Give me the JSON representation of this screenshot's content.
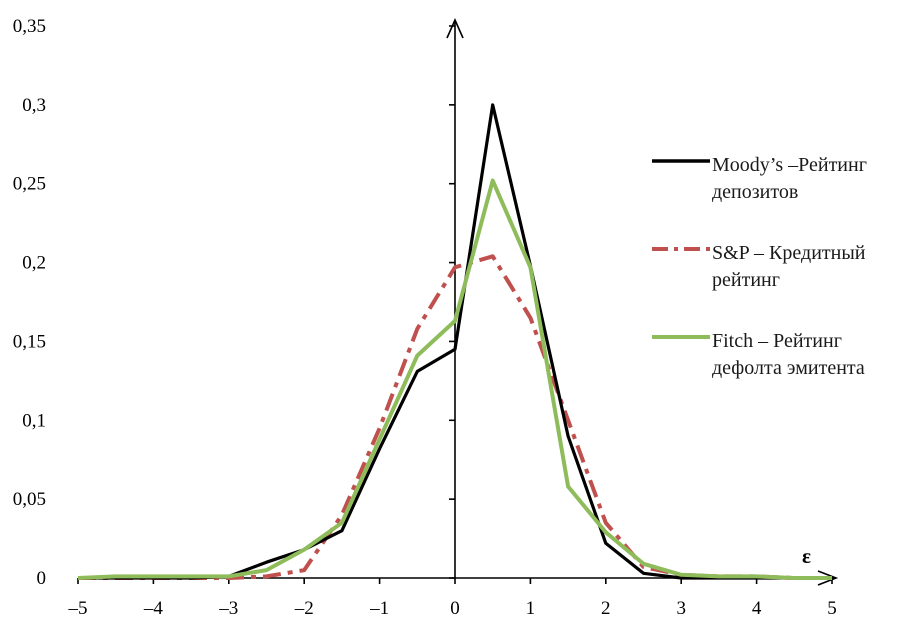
{
  "chart_data": {
    "type": "line",
    "title": "",
    "xlabel": "ε",
    "ylabel": "",
    "xlim": [
      -5,
      5
    ],
    "ylim": [
      0,
      0.35
    ],
    "x_ticks": [
      "–5",
      "–4",
      "–3",
      "–2",
      "–1",
      "0",
      "1",
      "2",
      "3",
      "4",
      "5"
    ],
    "y_ticks": [
      "0",
      "0,05",
      "0,1",
      "0,15",
      "0,2",
      "0,25",
      "0,3",
      "0,35"
    ],
    "grid": false,
    "legend_position": "right",
    "x": [
      -5,
      -4.5,
      -4,
      -3.5,
      -3,
      -2.5,
      -2,
      -1.5,
      -1,
      -0.5,
      0,
      0.5,
      1,
      1.5,
      2,
      2.5,
      3,
      3.5,
      4,
      4.5,
      5
    ],
    "series": [
      {
        "name": "Moody’s –Рейтинг депозитов",
        "color": "#000000",
        "style": "solid",
        "values": [
          0,
          0,
          0,
          0,
          0.001,
          0.01,
          0.018,
          0.03,
          0.082,
          0.131,
          0.145,
          0.3,
          0.198,
          0.09,
          0.022,
          0.003,
          0,
          0,
          0,
          0,
          0
        ]
      },
      {
        "name": "S&P – Кредитный рейтинг",
        "color": "#c0504d",
        "style": "dashdot",
        "values": [
          0,
          0,
          0,
          0,
          0,
          0.001,
          0.005,
          0.04,
          0.095,
          0.158,
          0.197,
          0.204,
          0.165,
          0.1,
          0.035,
          0.007,
          0.002,
          0.001,
          0.001,
          0,
          0
        ]
      },
      {
        "name": "Fitch – Рейтинг дефолта эмитента",
        "color": "#8fbc5a",
        "style": "solid",
        "values": [
          0,
          0.001,
          0.001,
          0.001,
          0.001,
          0.005,
          0.018,
          0.035,
          0.088,
          0.141,
          0.163,
          0.252,
          0.197,
          0.058,
          0.029,
          0.009,
          0.002,
          0.001,
          0.001,
          0,
          0
        ]
      }
    ]
  }
}
